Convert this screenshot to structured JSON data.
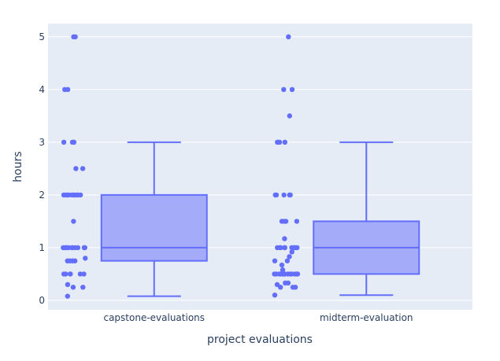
{
  "chart_data": {
    "type": "box",
    "xlabel": "project evaluations",
    "ylabel": "hours",
    "ylim": [
      -0.18,
      5.25
    ],
    "yticks": [
      0,
      1,
      2,
      3,
      4,
      5
    ],
    "grid": true,
    "colors": {
      "plot_bg": "#e5ecf6",
      "grid": "#ffffff",
      "box_line": "#636efa",
      "box_fill": "#a4abf8",
      "point": "#636efa",
      "text": "#2a3f5f"
    },
    "categories": [
      "capstone-evaluations",
      "midterm-evaluation"
    ],
    "boxes": [
      {
        "category": "capstone-evaluations",
        "lower_fence": 0.08,
        "q1": 0.75,
        "median": 1.0,
        "q3": 2.0,
        "upper_fence": 3.0,
        "points": [
          5,
          5,
          4,
          4,
          3,
          3,
          3,
          2.5,
          2.5,
          2,
          2,
          2,
          2,
          2,
          2,
          2,
          2,
          2,
          2,
          1.5,
          1,
          1,
          1,
          1,
          1,
          1,
          1,
          1,
          1,
          1,
          1,
          1,
          1,
          0.8,
          0.75,
          0.75,
          0.75,
          0.75,
          0.5,
          0.5,
          0.5,
          0.5,
          0.5,
          0.5,
          0.3,
          0.25,
          0.25,
          0.08
        ]
      },
      {
        "category": "midterm-evaluation",
        "lower_fence": 0.1,
        "q1": 0.5,
        "median": 1.0,
        "q3": 1.5,
        "upper_fence": 3.0,
        "points": [
          5,
          4,
          4,
          3.5,
          3,
          3,
          3,
          2,
          2,
          2,
          2,
          2,
          1.5,
          1.5,
          1.5,
          1.5,
          1.17,
          1,
          1,
          1,
          1,
          1,
          1,
          1,
          1,
          1,
          1,
          1,
          1,
          1,
          0.92,
          0.83,
          0.75,
          0.75,
          0.67,
          0.58,
          0.5,
          0.5,
          0.5,
          0.5,
          0.5,
          0.5,
          0.5,
          0.5,
          0.5,
          0.5,
          0.5,
          0.5,
          0.5,
          0.5,
          0.33,
          0.33,
          0.3,
          0.25,
          0.25,
          0.25,
          0.1
        ]
      }
    ]
  }
}
